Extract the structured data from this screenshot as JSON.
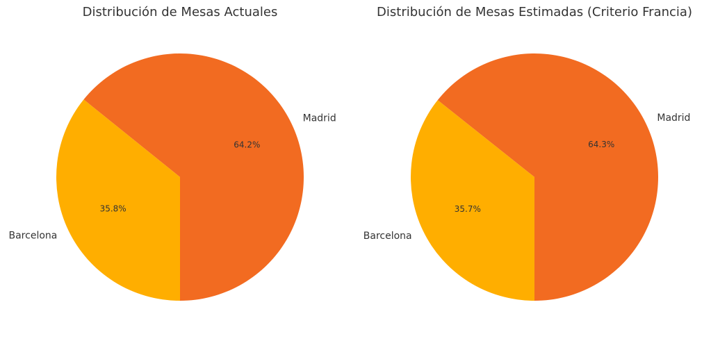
{
  "chart_data": [
    {
      "type": "pie",
      "title": "Distribución de Mesas Actuales",
      "categories": [
        "Madrid",
        "Barcelona"
      ],
      "values": [
        64.2,
        35.8
      ],
      "value_labels": [
        "64.2%",
        "35.8%"
      ],
      "colors": [
        "#f26b21",
        "#ffae00"
      ]
    },
    {
      "type": "pie",
      "title": "Distribución de Mesas Estimadas (Criterio Francia)",
      "categories": [
        "Madrid",
        "Barcelona"
      ],
      "values": [
        64.3,
        35.7
      ],
      "value_labels": [
        "64.3%",
        "35.7%"
      ],
      "colors": [
        "#f26b21",
        "#ffae00"
      ]
    }
  ]
}
